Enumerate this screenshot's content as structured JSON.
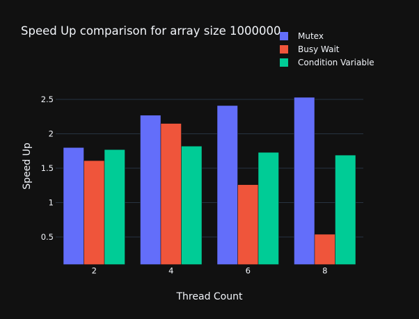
{
  "chart_data": {
    "type": "bar",
    "title": "Speed Up comparison for array size 1000000",
    "xlabel": "Thread Count",
    "ylabel": "Speed Up",
    "categories": [
      "2",
      "4",
      "6",
      "8"
    ],
    "series": [
      {
        "name": "Mutex",
        "values": [
          1.8,
          2.27,
          2.41,
          2.53
        ],
        "color": "#636efa"
      },
      {
        "name": "Busy Wait",
        "values": [
          1.61,
          2.15,
          1.26,
          0.54
        ],
        "color": "#ef553b"
      },
      {
        "name": "Condition Variable",
        "values": [
          1.77,
          1.82,
          1.73,
          1.69
        ],
        "color": "#00cc96"
      }
    ],
    "yticks": [
      "0.5",
      "1",
      "1.5",
      "2",
      "2.5"
    ],
    "ylim": [
      0.1,
      2.63
    ],
    "grid": true,
    "legend_position": "top-right",
    "background": "#111111",
    "text_color": "#f2f5fa",
    "grid_color": "#283442"
  }
}
